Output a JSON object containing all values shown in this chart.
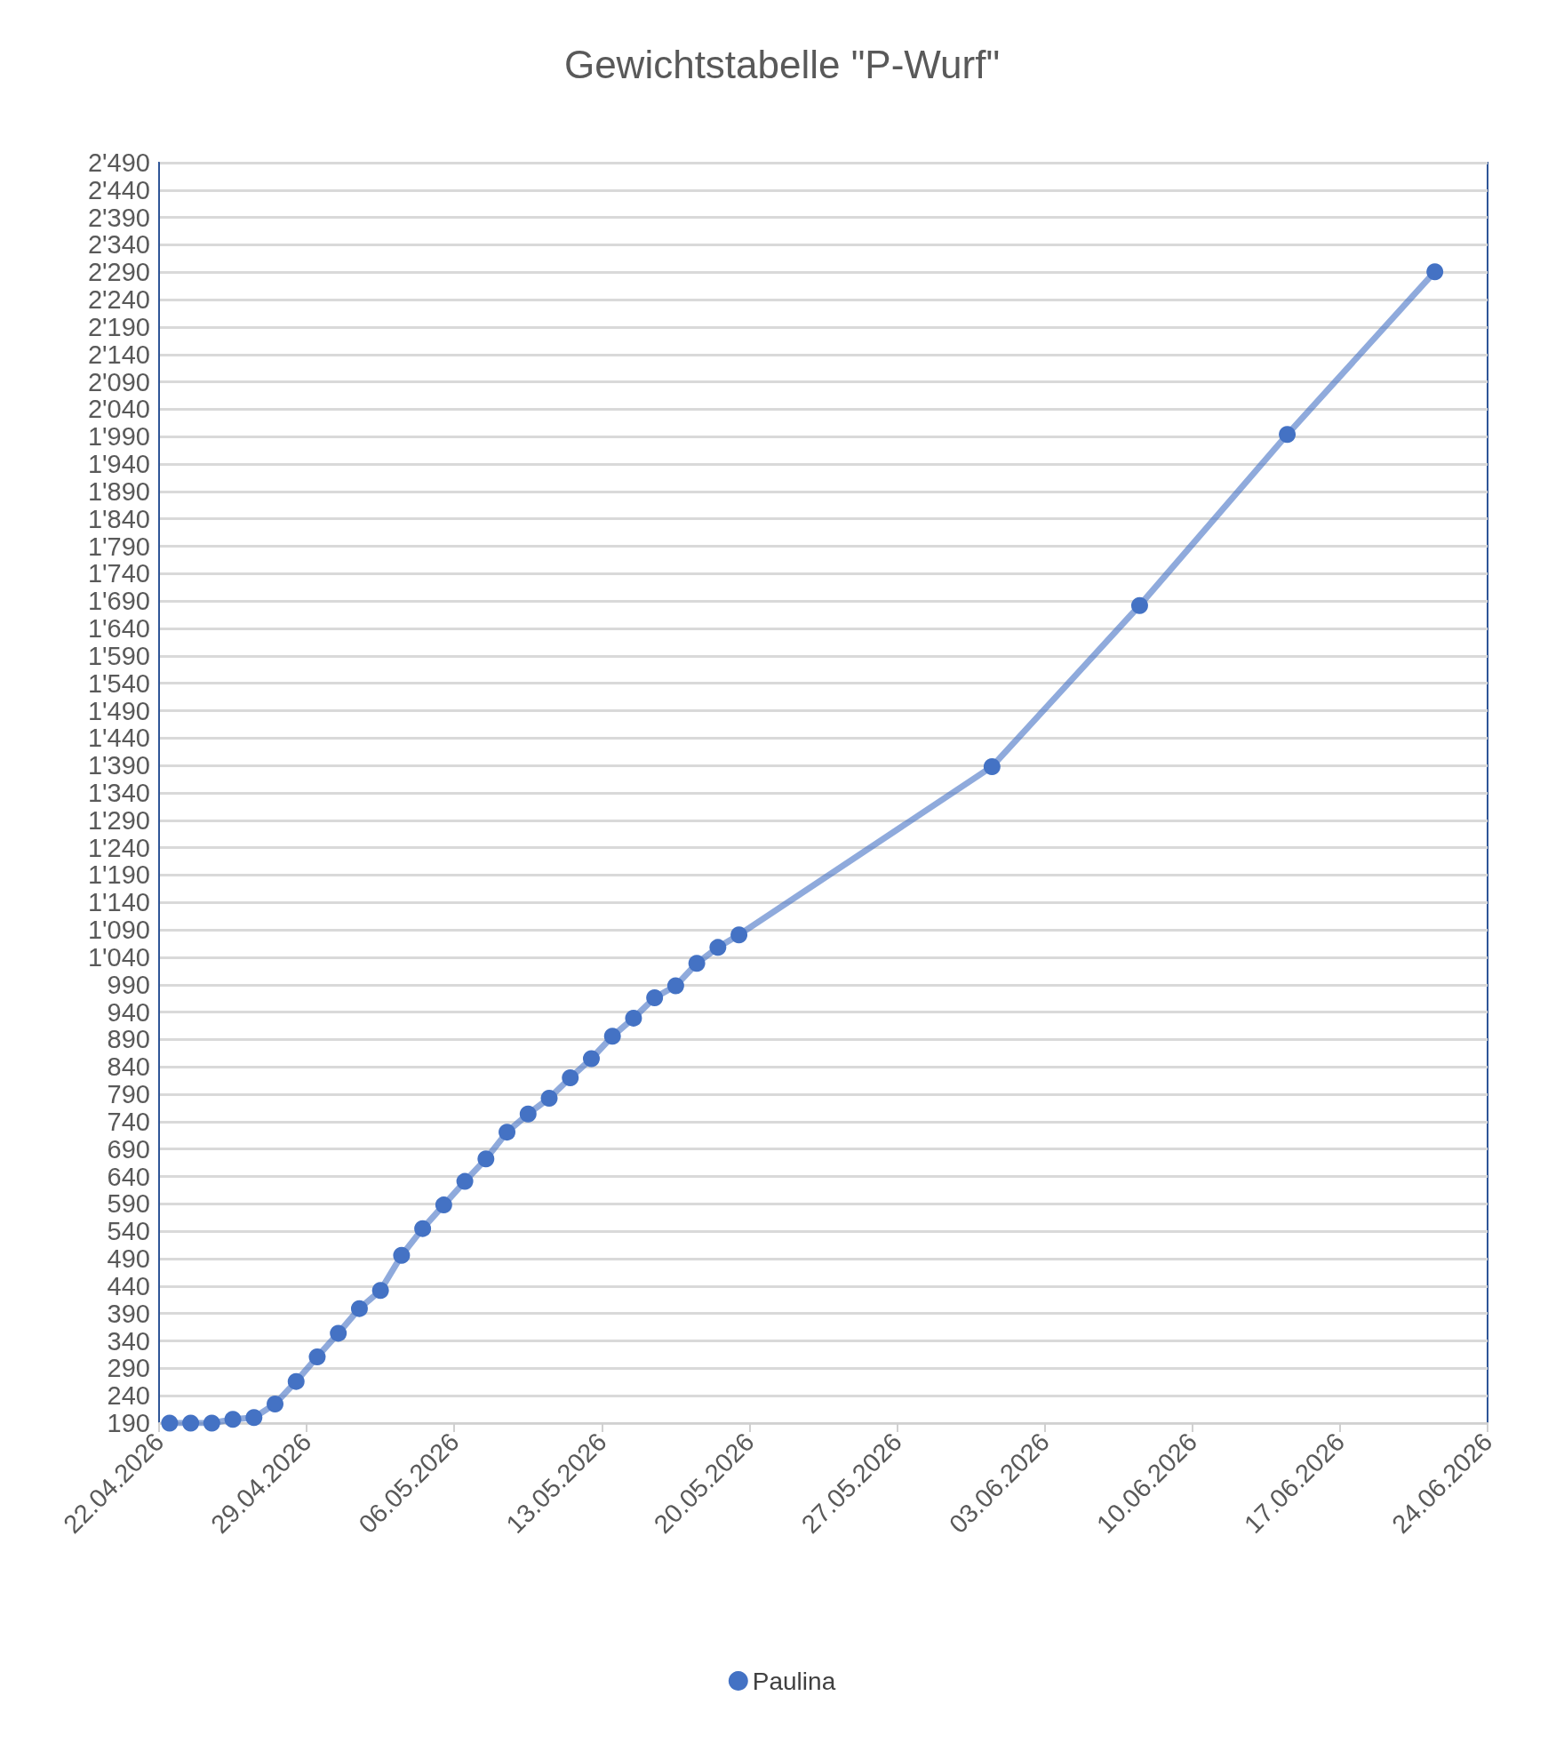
{
  "chart_data": {
    "type": "line",
    "title": "Gewichtstabelle \"P-Wurf\"",
    "x": [
      "2026-04-22T12:00",
      "2026-04-23T12:00",
      "2026-04-24T12:00",
      "2026-04-25T12:00",
      "2026-04-26T12:00",
      "2026-04-27T12:00",
      "2026-04-28T12:00",
      "2026-04-29T12:00",
      "2026-04-30T12:00",
      "2026-05-01T12:00",
      "2026-05-02T12:00",
      "2026-05-03T12:00",
      "2026-05-04T12:00",
      "2026-05-05T12:00",
      "2026-05-06T12:00",
      "2026-05-07T12:00",
      "2026-05-08T12:00",
      "2026-05-09T12:00",
      "2026-05-10T12:00",
      "2026-05-11T12:00",
      "2026-05-12T12:00",
      "2026-05-13T12:00",
      "2026-05-14T12:00",
      "2026-05-15T12:00",
      "2026-05-16T12:00",
      "2026-05-17T12:00",
      "2026-05-18T12:00",
      "2026-05-19T12:00",
      "2026-05-31T12:00",
      "2026-06-07T12:00",
      "2026-06-14T12:00",
      "2026-06-21T12:00"
    ],
    "series": [
      {
        "name": "Paulina",
        "color": "#4472c4",
        "values": [
          190,
          190,
          190,
          197,
          200,
          225,
          266,
          311,
          354,
          399,
          432,
          496,
          545,
          588,
          631,
          672,
          721,
          754,
          783,
          820,
          855,
          896,
          929,
          966,
          988,
          1029,
          1058,
          1081,
          1388,
          1682,
          1994,
          2291
        ]
      }
    ],
    "xlim": [
      "2026-04-22",
      "2026-06-24"
    ],
    "xticks": [
      {
        "value": "2026-04-22",
        "label": "22.04.2026"
      },
      {
        "value": "2026-04-29",
        "label": "29.04.2026"
      },
      {
        "value": "2026-05-06",
        "label": "06.05.2026"
      },
      {
        "value": "2026-05-13",
        "label": "13.05.2026"
      },
      {
        "value": "2026-05-20",
        "label": "20.05.2026"
      },
      {
        "value": "2026-05-27",
        "label": "27.05.2026"
      },
      {
        "value": "2026-06-03",
        "label": "03.06.2026"
      },
      {
        "value": "2026-06-10",
        "label": "10.06.2026"
      },
      {
        "value": "2026-06-17",
        "label": "17.06.2026"
      },
      {
        "value": "2026-06-24",
        "label": "24.06.2026"
      }
    ],
    "ylim": [
      190,
      2490
    ],
    "yticks": [
      190,
      240,
      290,
      340,
      390,
      440,
      490,
      540,
      590,
      640,
      690,
      740,
      790,
      840,
      890,
      940,
      990,
      {
        "value": 1040,
        "label": "1'040"
      },
      {
        "value": 1090,
        "label": "1'090"
      },
      {
        "value": 1140,
        "label": "1'140"
      },
      {
        "value": 1190,
        "label": "1'190"
      },
      {
        "value": 1240,
        "label": "1'240"
      },
      {
        "value": 1290,
        "label": "1'290"
      },
      {
        "value": 1340,
        "label": "1'340"
      },
      {
        "value": 1390,
        "label": "1'390"
      },
      {
        "value": 1440,
        "label": "1'440"
      },
      {
        "value": 1490,
        "label": "1'490"
      },
      {
        "value": 1540,
        "label": "1'540"
      },
      {
        "value": 1590,
        "label": "1'590"
      },
      {
        "value": 1640,
        "label": "1'640"
      },
      {
        "value": 1690,
        "label": "1'690"
      },
      {
        "value": 1740,
        "label": "1'740"
      },
      {
        "value": 1790,
        "label": "1'790"
      },
      {
        "value": 1840,
        "label": "1'840"
      },
      {
        "value": 1890,
        "label": "1'890"
      },
      {
        "value": 1940,
        "label": "1'940"
      },
      {
        "value": 1990,
        "label": "1'990"
      },
      {
        "value": 2040,
        "label": "2'040"
      },
      {
        "value": 2090,
        "label": "2'090"
      },
      {
        "value": 2140,
        "label": "2'140"
      },
      {
        "value": 2190,
        "label": "2'190"
      },
      {
        "value": 2240,
        "label": "2'240"
      },
      {
        "value": 2290,
        "label": "2'290"
      },
      {
        "value": 2340,
        "label": "2'340"
      },
      {
        "value": 2390,
        "label": "2'390"
      },
      {
        "value": 2440,
        "label": "2'440"
      },
      {
        "value": 2490,
        "label": "2'490"
      }
    ],
    "grid": "y",
    "legend": "bottom",
    "marker": "circle",
    "line_style": "solid"
  }
}
